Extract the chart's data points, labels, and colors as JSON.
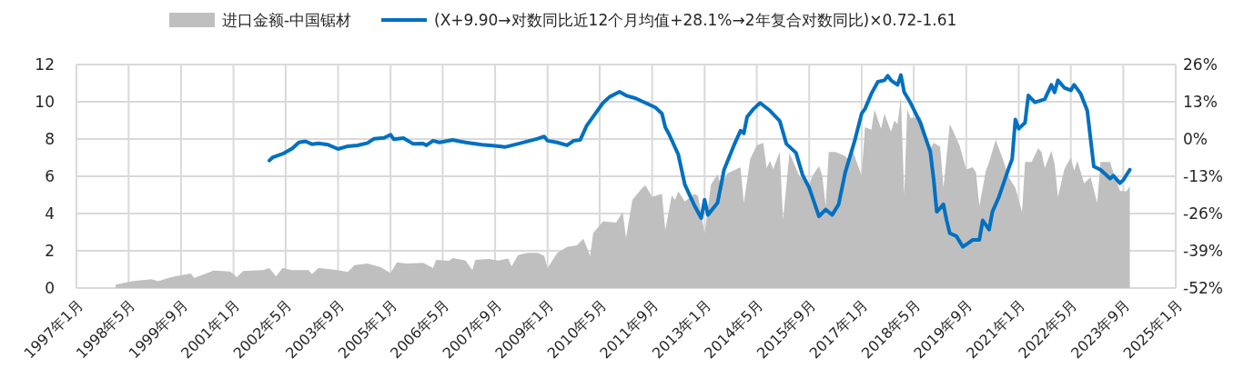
{
  "chart_data": {
    "type": "area",
    "legend": "top",
    "grid": true,
    "xlim": [
      "1997-01",
      "2025-01"
    ],
    "xticks": [
      {
        "value": "1997-01",
        "label": "1997年1月"
      },
      {
        "value": "1998-05",
        "label": "1998年5月"
      },
      {
        "value": "1999-09",
        "label": "1999年9月"
      },
      {
        "value": "2001-01",
        "label": "2001年1月"
      },
      {
        "value": "2002-05",
        "label": "2002年5月"
      },
      {
        "value": "2003-09",
        "label": "2003年9月"
      },
      {
        "value": "2005-01",
        "label": "2005年1月"
      },
      {
        "value": "2006-05",
        "label": "2006年5月"
      },
      {
        "value": "2007-09",
        "label": "2007年9月"
      },
      {
        "value": "2009-01",
        "label": "2009年1月"
      },
      {
        "value": "2010-05",
        "label": "2010年5月"
      },
      {
        "value": "2011-09",
        "label": "2011年9月"
      },
      {
        "value": "2013-01",
        "label": "2013年1月"
      },
      {
        "value": "2014-05",
        "label": "2014年5月"
      },
      {
        "value": "2015-09",
        "label": "2015年9月"
      },
      {
        "value": "2017-01",
        "label": "2017年1月"
      },
      {
        "value": "2018-05",
        "label": "2018年5月"
      },
      {
        "value": "2019-09",
        "label": "2019年9月"
      },
      {
        "value": "2021-01",
        "label": "2021年1月"
      },
      {
        "value": "2022-05",
        "label": "2022年5月"
      },
      {
        "value": "2023-09",
        "label": "2023年9月"
      },
      {
        "value": "2025-01",
        "label": "2025年1月"
      }
    ],
    "ylim": [
      0,
      12
    ],
    "yticks": [
      0,
      2,
      4,
      6,
      8,
      10,
      12
    ],
    "y2lim": [
      -52,
      26
    ],
    "y2ticks": [
      {
        "value": -52,
        "label": "-52%"
      },
      {
        "value": -39,
        "label": "-39%"
      },
      {
        "value": -26,
        "label": "-26%"
      },
      {
        "value": -13,
        "label": "-13%"
      },
      {
        "value": 0,
        "label": "0%"
      },
      {
        "value": 13,
        "label": "13%"
      },
      {
        "value": 26,
        "label": "26%"
      }
    ],
    "series": [
      {
        "name": "进口金额-中国锯材",
        "color": "#bfbfbf",
        "x": [
          "1998-01",
          "1998-06",
          "1998-12",
          "1999-02",
          "1999-06",
          "1999-12",
          "2000-01",
          "2000-07",
          "2000-12",
          "2001-02",
          "2001-04",
          "2001-10",
          "2001-12",
          "2002-02",
          "2002-04",
          "2002-07",
          "2002-12",
          "2003-01",
          "2003-03",
          "2003-08",
          "2003-12",
          "2004-02",
          "2004-06",
          "2004-10",
          "2005-01",
          "2005-03",
          "2005-06",
          "2005-11",
          "2006-02",
          "2006-03",
          "2006-07",
          "2006-08",
          "2006-12",
          "2007-02",
          "2007-03",
          "2007-07",
          "2007-10",
          "2008-01",
          "2008-02",
          "2008-04",
          "2008-07",
          "2008-10",
          "2008-12",
          "2009-01",
          "2009-04",
          "2009-07",
          "2009-10",
          "2009-12",
          "2010-02",
          "2010-03",
          "2010-06",
          "2010-10",
          "2010-12",
          "2011-01",
          "2011-03",
          "2011-06",
          "2011-07",
          "2011-09",
          "2011-12",
          "2012-01",
          "2012-03",
          "2012-04",
          "2012-05",
          "2012-07",
          "2012-10",
          "2012-11",
          "2013-01",
          "2013-03",
          "2013-05",
          "2013-06",
          "2013-08",
          "2013-12",
          "2014-01",
          "2014-03",
          "2014-05",
          "2014-07",
          "2014-08",
          "2014-09",
          "2014-10",
          "2014-12",
          "2015-01",
          "2015-03",
          "2015-06",
          "2015-09",
          "2015-10",
          "2015-12",
          "2016-01",
          "2016-02",
          "2016-03",
          "2016-05",
          "2016-08",
          "2016-09",
          "2016-10",
          "2017-01",
          "2017-02",
          "2017-04",
          "2017-05",
          "2017-07",
          "2017-08",
          "2017-10",
          "2017-11",
          "2017-12",
          "2018-01",
          "2018-02",
          "2018-03",
          "2018-04",
          "2018-07",
          "2018-10",
          "2018-11",
          "2019-01",
          "2019-02",
          "2019-04",
          "2019-07",
          "2019-09",
          "2019-11",
          "2019-12",
          "2020-01",
          "2020-03",
          "2020-04",
          "2020-06",
          "2020-08",
          "2020-10",
          "2020-12",
          "2021-02",
          "2021-03",
          "2021-05",
          "2021-07",
          "2021-08",
          "2021-09",
          "2021-11",
          "2021-12",
          "2022-01",
          "2022-03",
          "2022-05",
          "2022-06",
          "2022-07",
          "2022-09",
          "2022-11",
          "2023-01",
          "2023-02",
          "2023-05",
          "2023-06",
          "2023-08",
          "2023-10",
          "2023-11"
        ],
        "values": [
          0.18,
          0.37,
          0.47,
          0.37,
          0.58,
          0.78,
          0.54,
          0.94,
          0.89,
          0.58,
          0.91,
          0.96,
          1.07,
          0.62,
          1.07,
          0.96,
          0.96,
          0.75,
          1.07,
          0.99,
          0.86,
          1.23,
          1.32,
          1.12,
          0.8,
          1.38,
          1.32,
          1.35,
          1.07,
          1.51,
          1.46,
          1.61,
          1.48,
          0.96,
          1.51,
          1.56,
          1.48,
          1.59,
          1.16,
          1.77,
          1.89,
          1.89,
          1.72,
          1.07,
          1.89,
          2.21,
          2.29,
          2.65,
          1.72,
          2.94,
          3.59,
          3.51,
          4.08,
          2.7,
          4.73,
          5.38,
          5.51,
          4.89,
          5.06,
          3.11,
          4.98,
          4.73,
          5.19,
          4.65,
          5.06,
          4.94,
          2.94,
          5.55,
          6.1,
          5.55,
          6.16,
          6.49,
          4.57,
          6.93,
          7.66,
          7.79,
          6.44,
          6.83,
          6.39,
          7.3,
          3.67,
          7.25,
          6.03,
          5.55,
          6.03,
          6.55,
          6.03,
          4.4,
          7.3,
          7.3,
          7.09,
          6.85,
          7.5,
          6.03,
          8.63,
          8.5,
          9.57,
          8.55,
          9.37,
          8.39,
          8.99,
          8.8,
          10.26,
          4.98,
          9.61,
          9.12,
          9.2,
          7.5,
          7.79,
          7.58,
          5.38,
          8.8,
          7.66,
          6.36,
          6.49,
          6.2,
          4.4,
          6.28,
          6.77,
          7.95,
          7.01,
          5.95,
          5.38,
          4.08,
          6.77,
          6.77,
          7.5,
          7.3,
          6.44,
          7.37,
          6.68,
          4.89,
          6.36,
          7.01,
          6.3,
          6.83,
          5.62,
          5.95,
          4.57,
          6.77,
          6.77,
          6.2,
          5.22,
          5.19,
          5.46
        ]
      },
      {
        "name": "(X+9.90→对数同比近12个月均值+28.1%→2年复合对数同比)×0.72-1.61",
        "type": "line",
        "axis": "y2",
        "color": "#0070c0",
        "x": [
          "2001-12",
          "2002-01",
          "2002-04",
          "2002-07",
          "2002-09",
          "2002-11",
          "2003-01",
          "2003-03",
          "2003-06",
          "2003-09",
          "2003-12",
          "2004-03",
          "2004-06",
          "2004-08",
          "2004-11",
          "2005-01",
          "2005-02",
          "2005-05",
          "2005-08",
          "2005-11",
          "2005-12",
          "2006-02",
          "2006-04",
          "2006-08",
          "2006-12",
          "2007-05",
          "2007-09",
          "2007-12",
          "2008-05",
          "2008-10",
          "2008-12",
          "2009-01",
          "2009-04",
          "2009-07",
          "2009-09",
          "2009-11",
          "2010-01",
          "2010-03",
          "2010-06",
          "2010-08",
          "2010-11",
          "2011-01",
          "2011-04",
          "2011-07",
          "2011-10",
          "2011-12",
          "2012-01",
          "2012-02",
          "2012-05",
          "2012-07",
          "2012-10",
          "2012-12",
          "2013-01",
          "2013-02",
          "2013-05",
          "2013-07",
          "2013-10",
          "2013-12",
          "2014-01",
          "2014-02",
          "2014-04",
          "2014-06",
          "2014-09",
          "2014-12",
          "2015-02",
          "2015-05",
          "2015-07",
          "2015-09",
          "2015-12",
          "2016-02",
          "2016-04",
          "2016-06",
          "2016-08",
          "2016-11",
          "2017-01",
          "2017-02",
          "2017-04",
          "2017-06",
          "2017-08",
          "2017-09",
          "2017-10",
          "2017-12",
          "2018-01",
          "2018-02",
          "2018-04",
          "2018-07",
          "2018-10",
          "2018-11",
          "2018-12",
          "2019-02",
          "2019-03",
          "2019-04",
          "2019-06",
          "2019-08",
          "2019-10",
          "2019-11",
          "2020-01",
          "2020-02",
          "2020-04",
          "2020-05",
          "2020-07",
          "2020-10",
          "2020-11",
          "2020-12",
          "2021-01",
          "2021-03",
          "2021-04",
          "2021-06",
          "2021-09",
          "2021-11",
          "2021-12",
          "2022-01",
          "2022-03",
          "2022-05",
          "2022-06",
          "2022-08",
          "2022-10",
          "2022-11",
          "2022-12",
          "2023-02",
          "2023-05",
          "2023-06",
          "2023-08",
          "2023-09",
          "2023-11"
        ],
        "values": [
          -7.5,
          -6.4,
          -5.2,
          -3.3,
          -1.2,
          -0.8,
          -1.8,
          -1.5,
          -2.0,
          -3.5,
          -2.5,
          -2.2,
          -1.4,
          0.1,
          0.4,
          1.5,
          -0.1,
          0.3,
          -1.7,
          -1.6,
          -2.2,
          -0.6,
          -1.2,
          -0.3,
          -1.2,
          -2.0,
          -2.4,
          -2.8,
          -1.4,
          0.1,
          0.9,
          -0.6,
          -1.2,
          -2.2,
          -0.6,
          -0.3,
          4.7,
          7.8,
          12.6,
          14.7,
          16.5,
          15.2,
          14.2,
          12.6,
          11.0,
          8.9,
          4.1,
          2.0,
          -5.4,
          -15.9,
          -23.4,
          -27.6,
          -21.2,
          -26.5,
          -22.3,
          -10.7,
          -2.2,
          2.9,
          2.0,
          7.8,
          10.5,
          12.6,
          9.9,
          6.3,
          -1.7,
          -4.8,
          -12.5,
          -17.0,
          -27.0,
          -24.6,
          -26.5,
          -22.8,
          -11.7,
          -0.1,
          8.9,
          10.5,
          15.8,
          20.0,
          20.5,
          22.1,
          20.5,
          18.9,
          22.3,
          16.3,
          12.6,
          5.7,
          -4.3,
          -13.8,
          -25.4,
          -22.8,
          -28.1,
          -32.9,
          -33.9,
          -37.6,
          -36.0,
          -35.2,
          -35.2,
          -28.4,
          -31.6,
          -25.4,
          -20.2,
          -10.1,
          -7.0,
          6.8,
          3.6,
          5.7,
          15.2,
          12.8,
          13.9,
          18.9,
          16.3,
          20.5,
          17.9,
          17.0,
          18.9,
          15.8,
          9.9,
          -0.1,
          -9.6,
          -10.7,
          -13.8,
          -12.8,
          -15.4,
          -14.3,
          -10.7
        ]
      }
    ]
  }
}
